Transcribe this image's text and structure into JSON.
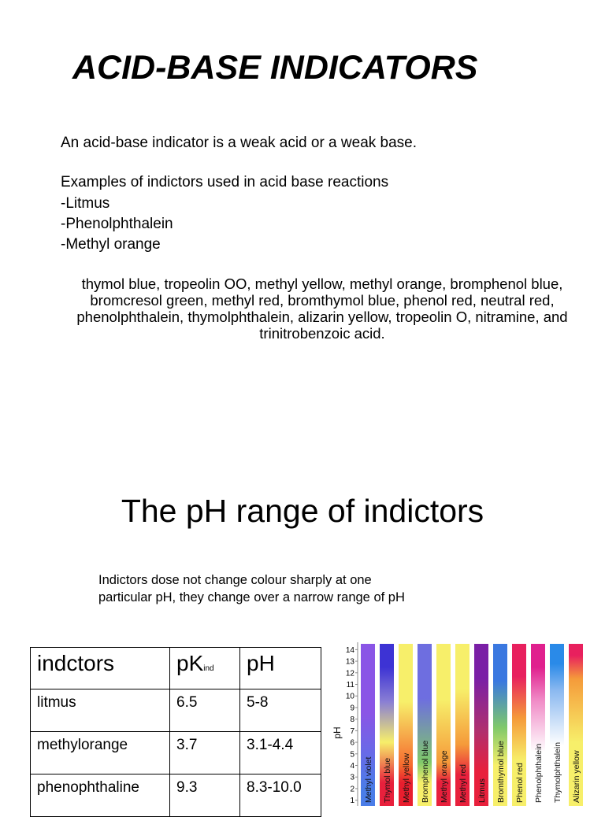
{
  "title": "ACID-BASE INDICATORS",
  "intro": "An acid-base indicator is a weak acid or a weak base.",
  "examples_heading": "Examples of indictors used in acid base reactions",
  "examples": [
    "-Litmus",
    "-Phenolphthalein",
    "-Methyl orange"
  ],
  "long_list": "thymol blue, tropeolin OO, methyl yellow, methyl orange, bromphenol blue, bromcresol green, methyl red, bromthymol blue, phenol red, neutral red, phenolphthalein, thymolphthalein, alizarin yellow, tropeolin O, nitramine, and trinitrobenzoic acid.",
  "section_title": "The pH range of indictors",
  "range_note_line1": "Indictors dose not change colour sharply at one",
  "range_note_line2": "particular pH, they change over a narrow range of pH",
  "table": {
    "headers": {
      "col1": "indctors",
      "col2_main": "pK",
      "col2_sub": "ind",
      "col3": "pH"
    },
    "rows": [
      {
        "name": "litmus",
        "pk": "6.5",
        "ph": "5-8"
      },
      {
        "name": "methylorange",
        "pk": "3.7",
        "ph": "3.1-4.4"
      },
      {
        "name": "phenophthaline",
        "pk": "9.3",
        "ph": "8.3-10.0"
      }
    ]
  },
  "chart_data": {
    "type": "bar",
    "ylabel": "pH",
    "ylim": [
      1,
      14
    ],
    "yticks": [
      1,
      2,
      3,
      4,
      5,
      6,
      7,
      8,
      9,
      10,
      11,
      12,
      13,
      14
    ],
    "indicators": [
      {
        "name": "Methyl violet",
        "segments": [
          {
            "from": 1,
            "to": 2,
            "color": "#4a7de8"
          },
          {
            "from": 2,
            "to": 14,
            "color": "#8a55e6"
          }
        ]
      },
      {
        "name": "Thymol blue",
        "segments": [
          {
            "from": 1,
            "to": 3,
            "color": "#e8203c"
          },
          {
            "from": 3,
            "to": 8,
            "color": "#f7ef6a"
          },
          {
            "from": 8,
            "to": 10,
            "color": "#8a7fd4"
          },
          {
            "from": 10,
            "to": 14,
            "color": "#3d33d4"
          }
        ]
      },
      {
        "name": "Methyl yellow",
        "segments": [
          {
            "from": 1,
            "to": 3,
            "color": "#e81e2e"
          },
          {
            "from": 3,
            "to": 4,
            "color": "#f56a2e"
          },
          {
            "from": 4,
            "to": 14,
            "color": "#f7ef6a"
          }
        ]
      },
      {
        "name": "Bromphenol blue",
        "segments": [
          {
            "from": 1,
            "to": 3,
            "color": "#f7ef6a"
          },
          {
            "from": 3,
            "to": 4.6,
            "color": "#7fc86a"
          },
          {
            "from": 4.6,
            "to": 14,
            "color": "#6e6ee0"
          }
        ]
      },
      {
        "name": "Methyl orange",
        "segments": [
          {
            "from": 1,
            "to": 3.1,
            "color": "#e8203c"
          },
          {
            "from": 3.1,
            "to": 4.4,
            "color": "#f59a3a"
          },
          {
            "from": 4.4,
            "to": 14,
            "color": "#f7ef6a"
          }
        ]
      },
      {
        "name": "Methyl red",
        "segments": [
          {
            "from": 1,
            "to": 4.4,
            "color": "#e8203c"
          },
          {
            "from": 4.4,
            "to": 6.2,
            "color": "#f59a3a"
          },
          {
            "from": 6.2,
            "to": 14,
            "color": "#f7ef6a"
          }
        ]
      },
      {
        "name": "Litmus",
        "segments": [
          {
            "from": 1,
            "to": 5,
            "color": "#e8203c"
          },
          {
            "from": 5,
            "to": 8,
            "color": "#b0306e"
          },
          {
            "from": 8,
            "to": 14,
            "color": "#7a1fa6"
          }
        ]
      },
      {
        "name": "Bromthymol blue",
        "segments": [
          {
            "from": 1,
            "to": 6,
            "color": "#f7ef6a"
          },
          {
            "from": 6,
            "to": 7.6,
            "color": "#7fc86a"
          },
          {
            "from": 7.6,
            "to": 14,
            "color": "#3a78e0"
          }
        ]
      },
      {
        "name": "Phenol red",
        "segments": [
          {
            "from": 1,
            "to": 6.8,
            "color": "#f7ef6a"
          },
          {
            "from": 6.8,
            "to": 8.4,
            "color": "#f59a3a"
          },
          {
            "from": 8.4,
            "to": 14,
            "color": "#e8205e"
          }
        ]
      },
      {
        "name": "Phenolphthalein",
        "segments": [
          {
            "from": 1,
            "to": 8.3,
            "color": "#ffffff"
          },
          {
            "from": 8.3,
            "to": 10,
            "color": "#f08ac6"
          },
          {
            "from": 10,
            "to": 14,
            "color": "#e0208e"
          }
        ]
      },
      {
        "name": "Thymolphthalein",
        "segments": [
          {
            "from": 1,
            "to": 9.4,
            "color": "#ffffff"
          },
          {
            "from": 9.4,
            "to": 10.6,
            "color": "#8ab8f0"
          },
          {
            "from": 10.6,
            "to": 14,
            "color": "#2a8ae8"
          }
        ]
      },
      {
        "name": "Alizarin yellow",
        "segments": [
          {
            "from": 1,
            "to": 10,
            "color": "#f7ef6a"
          },
          {
            "from": 10,
            "to": 12,
            "color": "#f59a3a"
          },
          {
            "from": 12,
            "to": 14,
            "color": "#e8205e"
          }
        ]
      }
    ],
    "grid": false
  }
}
